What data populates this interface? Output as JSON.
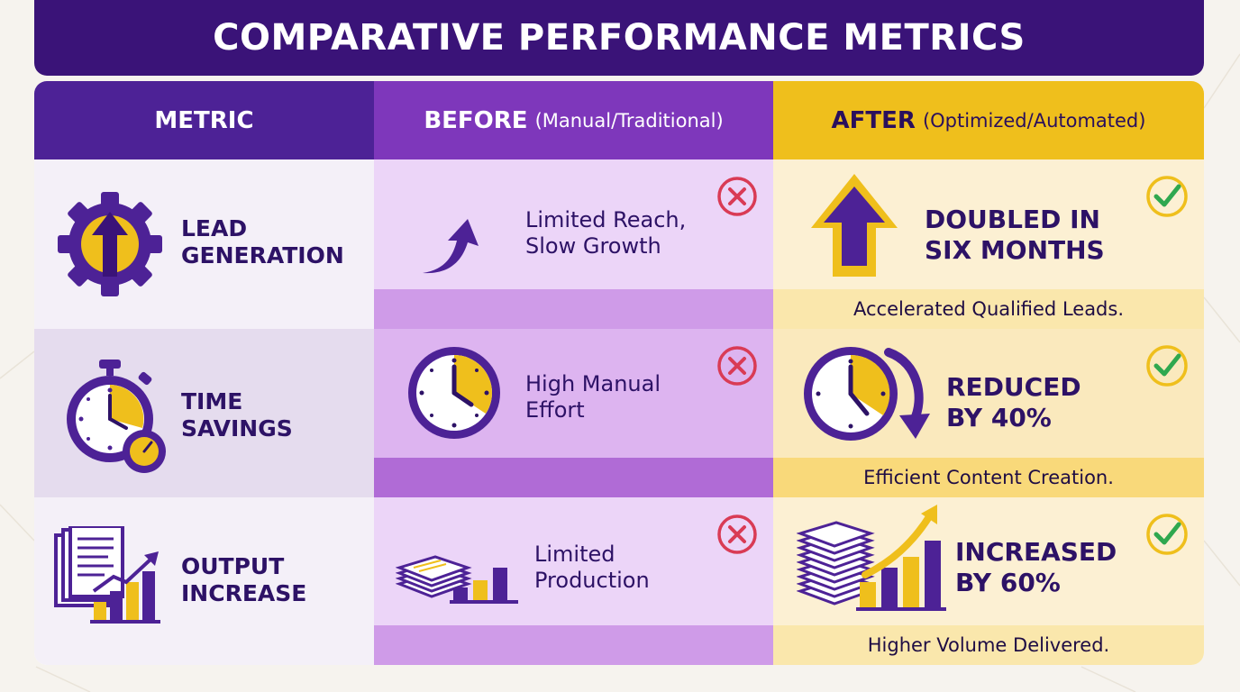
{
  "title": "COMPARATIVE PERFORMANCE METRICS",
  "headers": {
    "metric": "METRIC",
    "before_main": "BEFORE",
    "before_sub": "(Manual/Traditional)",
    "after_main": "AFTER",
    "after_sub": "(Optimized/Automated)"
  },
  "rows": [
    {
      "metric_line1": "LEAD",
      "metric_line2": "GENERATION",
      "before_line1": "Limited Reach,",
      "before_line2": "Slow Growth",
      "after_line1": "DOUBLED IN",
      "after_line2": "SIX MONTHS",
      "after_note": "Accelerated Qualified Leads.",
      "metric_icon": "gear-arrow-up-icon",
      "before_icon": "curved-arrow-icon",
      "after_icon": "arrow-up-icon"
    },
    {
      "metric_line1": "TIME",
      "metric_line2": "SAVINGS",
      "before_line1": "High Manual",
      "before_line2": "Effort",
      "after_line1": "REDUCED",
      "after_line2": "BY 40%",
      "after_note": "Efficient Content Creation.",
      "metric_icon": "stopwatch-icon",
      "before_icon": "clock-icon",
      "after_icon": "clock-arrow-down-icon"
    },
    {
      "metric_line1": "OUTPUT",
      "metric_line2": "INCREASE",
      "before_line1": "Limited",
      "before_line2": "Production",
      "after_line1": "INCREASED",
      "after_line2": "BY 60%",
      "after_note": "Higher Volume Delivered.",
      "metric_icon": "documents-chart-icon",
      "before_icon": "papers-bar-chart-icon",
      "after_icon": "papers-growth-chart-icon"
    }
  ],
  "colors": {
    "banner": "#3a1378",
    "purple": "#4d2296",
    "violet": "#7e37bb",
    "gold": "#efbf1c",
    "cross": "#d93b55",
    "check": "#2fa84f"
  }
}
